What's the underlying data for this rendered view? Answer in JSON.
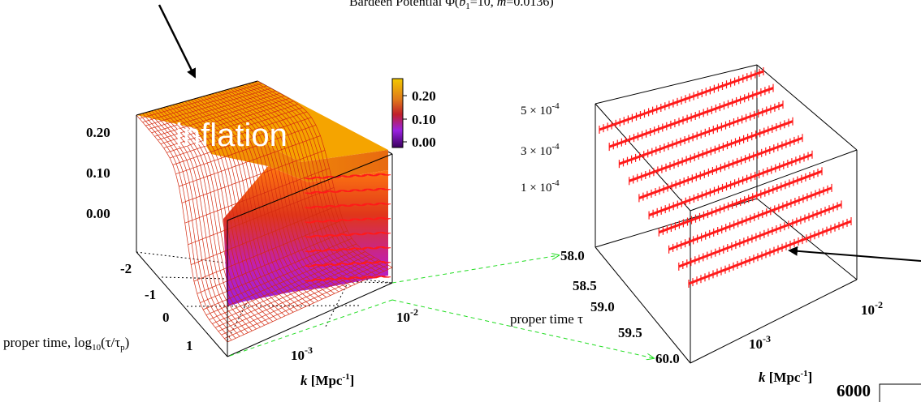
{
  "title_prefix": "Bardeen Potential Φ(",
  "title_b": "b",
  "title_b_sub": "1",
  "title_mid": "=10, ",
  "title_m": "m",
  "title_suffix": "=0.0136)",
  "overlay_text": "inflation",
  "corner_number": "6000",
  "colors": {
    "surface_fill": "#f5a400",
    "surface_mesh": "#d42a10",
    "violet": "#9a22e0",
    "ridge_lines": "#ff1a1a",
    "guide_dash": "#22dd22",
    "box_edges": "#000000",
    "dotted_grid": "#000000"
  },
  "colorbar": {
    "labels": [
      "0.20",
      "0.10",
      "0.00"
    ],
    "stops": [
      "#f2c800",
      "#e07a1a",
      "#c0202a",
      "#9a22e0",
      "#3b0060"
    ]
  },
  "chart_data": [
    {
      "type": "surface",
      "z_ticks": [
        "0.20",
        "0.10",
        "0.00"
      ],
      "y_ticks": [
        "-2",
        "-1",
        "0",
        "1"
      ],
      "x_ticks": [
        {
          "base": "10",
          "exp": "-3"
        },
        {
          "base": "10",
          "exp": "-2"
        }
      ],
      "ylabel_prefix": "proper time, log",
      "ylabel_sub": "10",
      "ylabel_inner": "(τ/τ",
      "ylabel_inner_sub": "p",
      "ylabel_suffix": ")",
      "xlabel_k": "k",
      "xlabel_unit_base": " [Mpc",
      "xlabel_unit_exp": "-1",
      "xlabel_unit_close": "]",
      "zlim": [
        0.0,
        0.2
      ],
      "ylim": [
        -2,
        1
      ],
      "plateau_value": 0.2,
      "decayed_value": 0.0,
      "transition_log_tau": -0.4
    },
    {
      "type": "surface",
      "z_ticks": [
        {
          "mant": "5 × 10",
          "exp": "-4"
        },
        {
          "mant": "3 × 10",
          "exp": "-4"
        },
        {
          "mant": "1 × 10",
          "exp": "-4"
        }
      ],
      "y_ticks": [
        "58.0",
        "58.5",
        "59.0",
        "59.5",
        "60.0"
      ],
      "x_ticks": [
        {
          "base": "10",
          "exp": "-3"
        },
        {
          "base": "10",
          "exp": "-2"
        }
      ],
      "ylabel": "proper time τ",
      "xlabel_k": "k",
      "xlabel_unit_base": " [Mpc",
      "xlabel_unit_exp": "-1",
      "xlabel_unit_close": "]",
      "ylim": [
        58.0,
        60.0
      ],
      "ridge_count": 10
    }
  ]
}
